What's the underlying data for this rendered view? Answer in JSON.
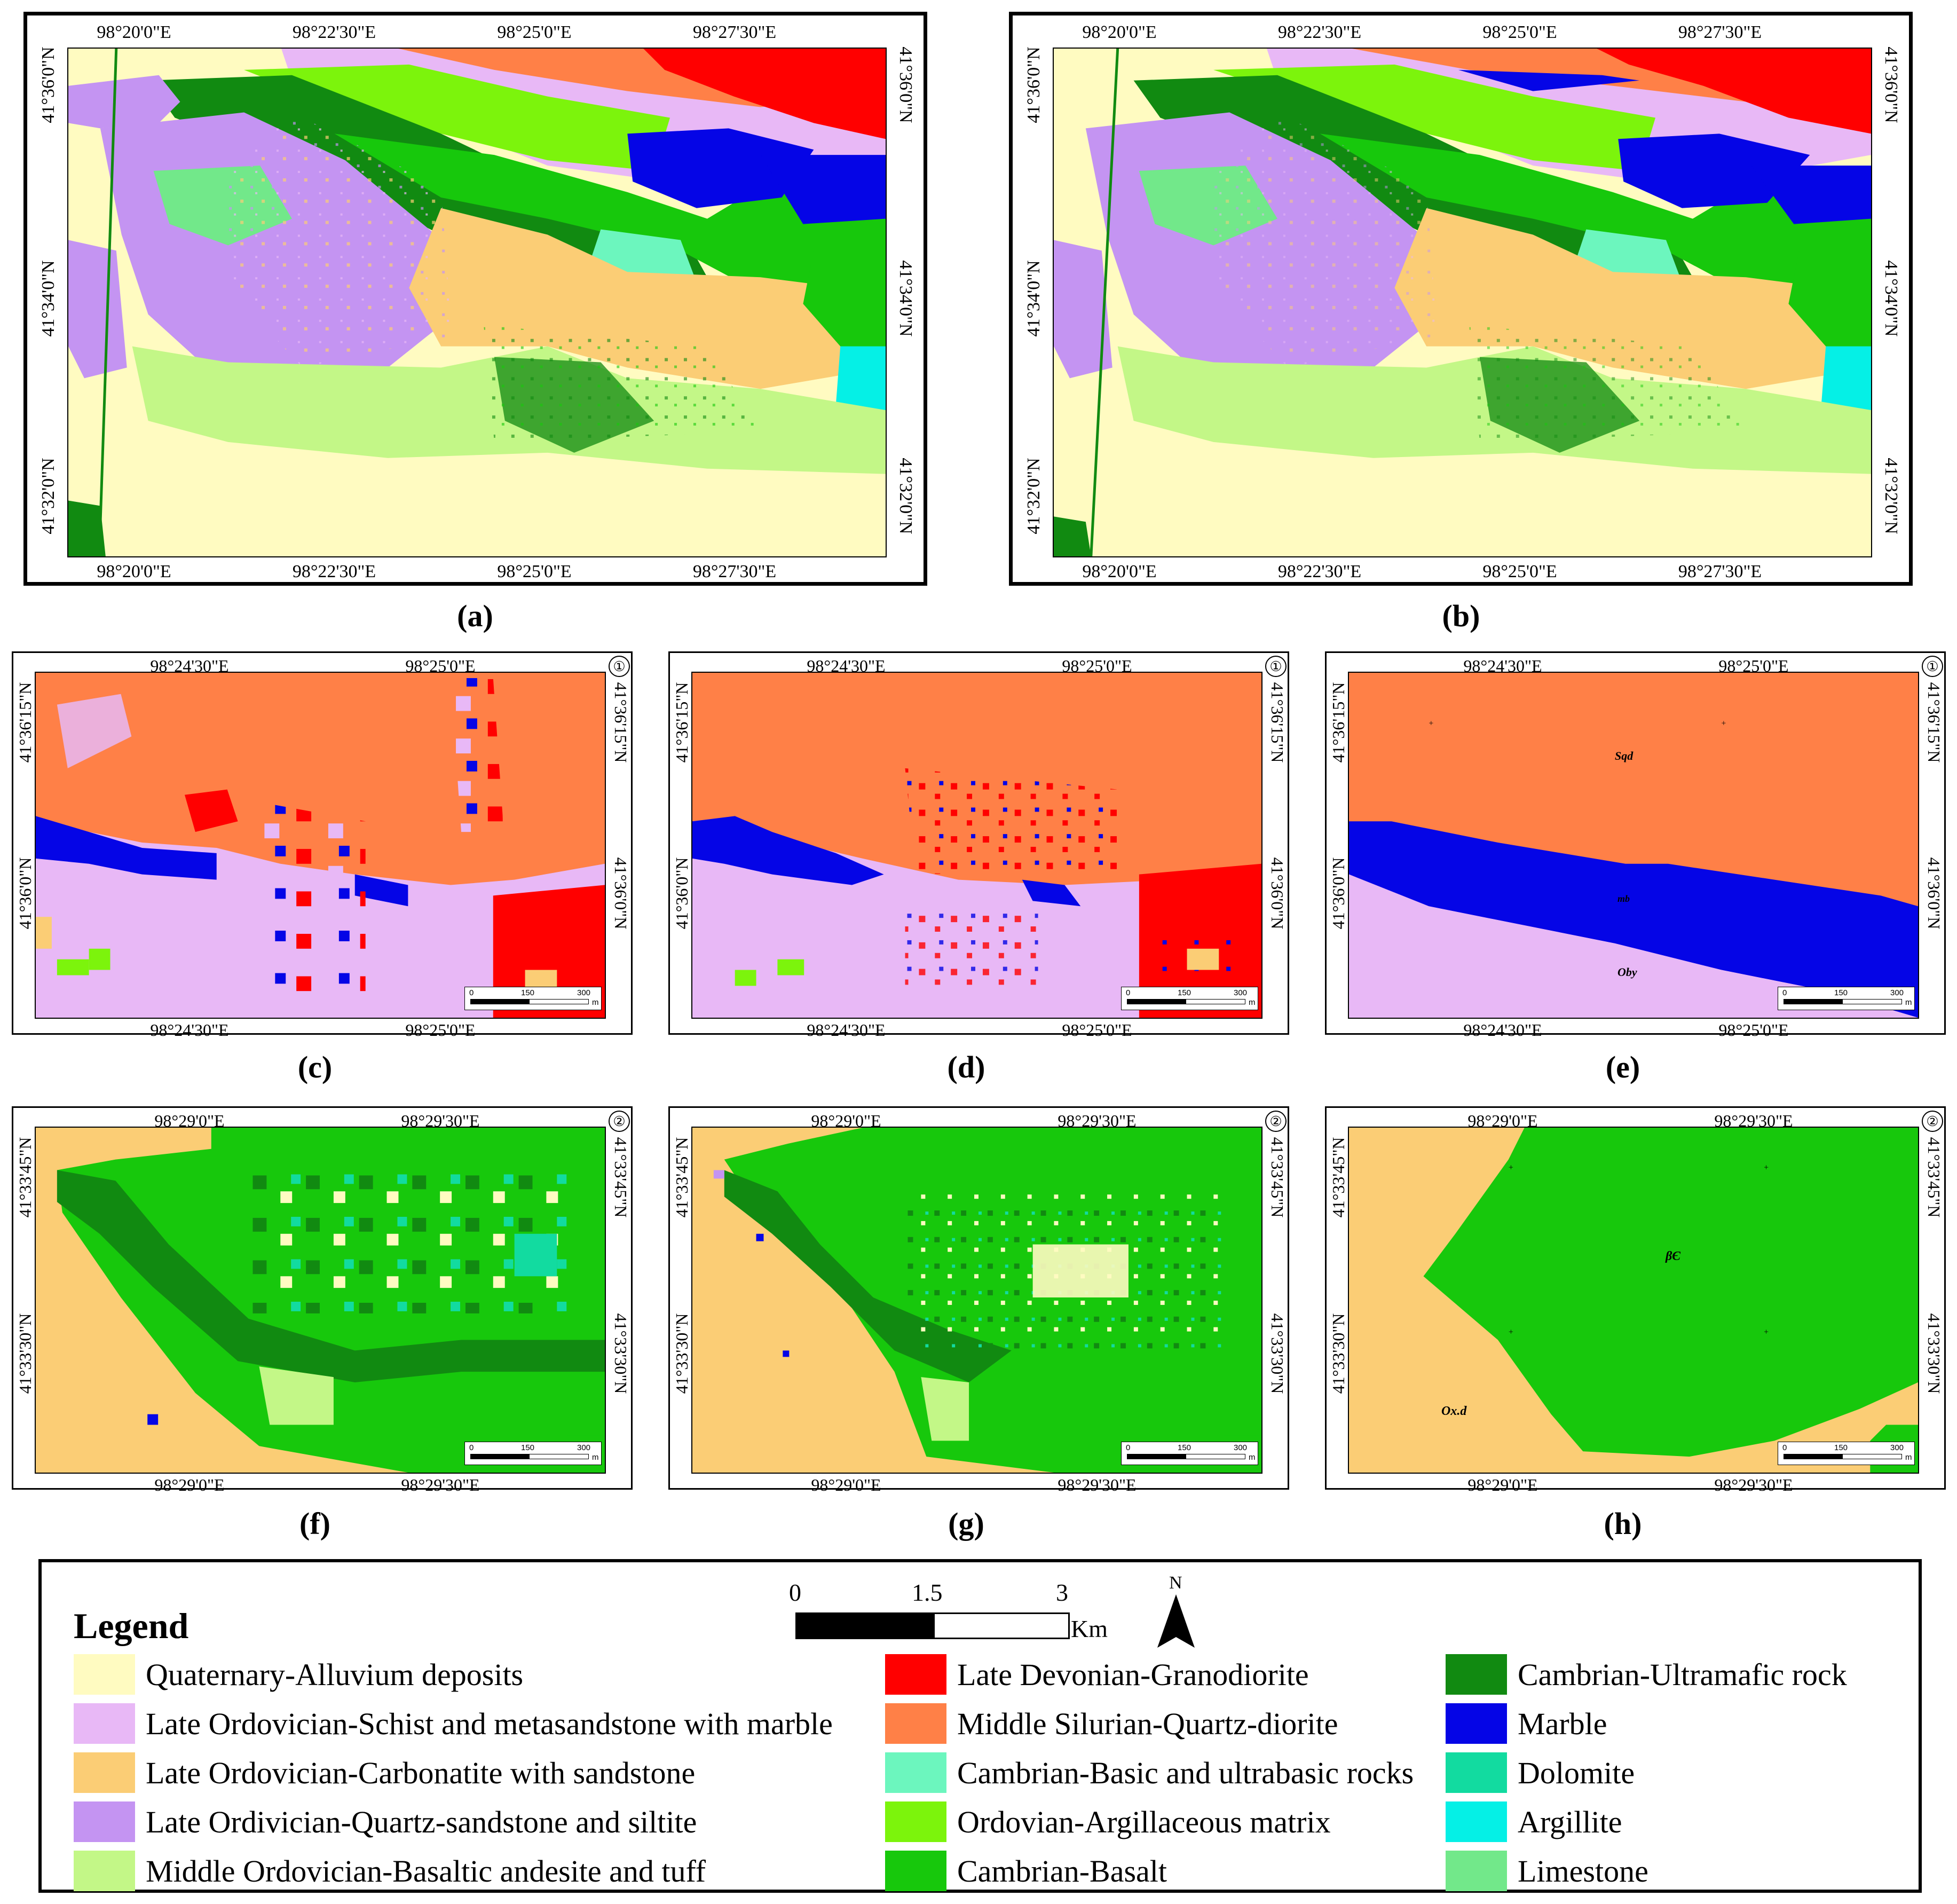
{
  "panels": {
    "a": {
      "label": "(a)",
      "top_ticks": [
        "98°20'0\"E",
        "98°22'30\"E",
        "98°25'0\"E",
        "98°27'30\"E"
      ],
      "bottom_ticks": [
        "98°20'0\"E",
        "98°22'30\"E",
        "98°25'0\"E",
        "98°27'30\"E"
      ],
      "left_ticks": [
        "41°36'0\"N",
        "41°34'0\"N",
        "41°32'0\"N"
      ],
      "right_ticks": [
        "41°36'0\"N",
        "41°34'0\"N",
        "41°32'0\"N"
      ]
    },
    "b": {
      "label": "(b)",
      "top_ticks": [
        "98°20'0\"E",
        "98°22'30\"E",
        "98°25'0\"E",
        "98°27'30\"E"
      ],
      "bottom_ticks": [
        "98°20'0\"E",
        "98°22'30\"E",
        "98°25'0\"E",
        "98°27'30\"E"
      ],
      "left_ticks": [
        "41°36'0\"N",
        "41°34'0\"N",
        "41°32'0\"N"
      ],
      "right_ticks": [
        "41°36'0\"N",
        "41°34'0\"N",
        "41°32'0\"N"
      ]
    },
    "c": {
      "label": "(c)",
      "area": "①",
      "top_ticks": [
        "98°24'30\"E",
        "98°25'0\"E"
      ],
      "bottom_ticks": [
        "98°24'30\"E",
        "98°25'0\"E"
      ],
      "left_ticks": [
        "41°36'15\"N",
        "41°36'0\"N"
      ],
      "right_ticks": [
        "41°36'15\"N",
        "41°36'0\"N"
      ]
    },
    "d": {
      "label": "(d)",
      "area": "①",
      "top_ticks": [
        "98°24'30\"E",
        "98°25'0\"E"
      ],
      "bottom_ticks": [
        "98°24'30\"E",
        "98°25'0\"E"
      ],
      "left_ticks": [
        "41°36'15\"N",
        "41°36'0\"N"
      ],
      "right_ticks": [
        "41°36'15\"N",
        "41°36'0\"N"
      ]
    },
    "e": {
      "label": "(e)",
      "area": "①",
      "top_ticks": [
        "98°24'30\"E",
        "98°25'0\"E"
      ],
      "bottom_ticks": [
        "98°24'30\"E",
        "98°25'0\"E"
      ],
      "left_ticks": [
        "41°36'15\"N",
        "41°36'0\"N"
      ],
      "right_ticks": [
        "41°36'15\"N",
        "41°36'0\"N"
      ],
      "units": [
        "Sqd",
        "mb",
        "Oby"
      ]
    },
    "f": {
      "label": "(f)",
      "area": "②",
      "top_ticks": [
        "98°29'0\"E",
        "98°29'30\"E"
      ],
      "bottom_ticks": [
        "98°29'0\"E",
        "98°29'30\"E"
      ],
      "left_ticks": [
        "41°33'45\"N",
        "41°33'30\"N"
      ],
      "right_ticks": [
        "41°33'45\"N",
        "41°33'30\"N"
      ]
    },
    "g": {
      "label": "(g)",
      "area": "②",
      "top_ticks": [
        "98°29'0\"E",
        "98°29'30\"E"
      ],
      "bottom_ticks": [
        "98°29'0\"E",
        "98°29'30\"E"
      ],
      "left_ticks": [
        "41°33'45\"N",
        "41°33'30\"N"
      ],
      "right_ticks": [
        "41°33'45\"N",
        "41°33'30\"N"
      ]
    },
    "h": {
      "label": "(h)",
      "area": "②",
      "top_ticks": [
        "98°29'0\"E",
        "98°29'30\"E"
      ],
      "bottom_ticks": [
        "98°29'0\"E",
        "98°29'30\"E"
      ],
      "left_ticks": [
        "41°33'45\"N",
        "41°33'30\"N"
      ],
      "right_ticks": [
        "41°33'45\"N",
        "41°33'30\"N"
      ],
      "units": [
        "βЄ",
        "Ox.d"
      ]
    }
  },
  "small_scale": {
    "ticks": [
      "0",
      "150",
      "300"
    ],
    "unit": "m"
  },
  "legend": {
    "title": "Legend",
    "scale": {
      "ticks": [
        "0",
        "1.5",
        "3"
      ],
      "unit": "Km"
    },
    "north": "N",
    "items": [
      {
        "label": "Quaternary-Alluvium deposits",
        "color": "#FFFBC1"
      },
      {
        "label": "Late Ordovician-Schist and metasandstone with marble",
        "color": "#E8B8F6"
      },
      {
        "label": "Late Ordovician-Carbonatite with sandstone",
        "color": "#FBCD75"
      },
      {
        "label": "Late Ordivician-Quartz-sandstone and siltite",
        "color": "#C494F2"
      },
      {
        "label": "Middle Ordovician-Basaltic andesite and tuff",
        "color": "#C3F787"
      },
      {
        "label": "Late Devonian-Granodiorite",
        "color": "#FF0000"
      },
      {
        "label": "Middle Silurian-Quartz-diorite",
        "color": "#FF8047"
      },
      {
        "label": "Cambrian-Basic and ultrabasic rocks",
        "color": "#6CF6BE"
      },
      {
        "label": "Ordovian-Argillaceous matrix",
        "color": "#7CF40C"
      },
      {
        "label": "Cambrian-Basalt",
        "color": "#17C80C"
      },
      {
        "label": "Cambrian-Ultramafic rock",
        "color": "#118A11"
      },
      {
        "label": "Marble",
        "color": "#0505E6"
      },
      {
        "label": "Dolomite",
        "color": "#12DBA0"
      },
      {
        "label": "Argillite",
        "color": "#05F0E6"
      },
      {
        "label": "Limestone",
        "color": "#72E88A"
      }
    ]
  }
}
